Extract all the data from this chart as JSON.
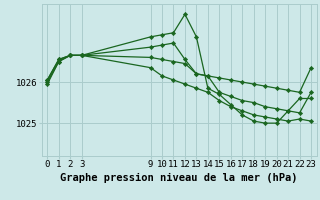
{
  "background_color": "#cde8e8",
  "grid_color": "#aacccc",
  "line_color": "#1a6620",
  "marker_color": "#1a6620",
  "xlabel": "Graphe pression niveau de la mer (hPa)",
  "xlim": [
    -0.5,
    23.5
  ],
  "ylim": [
    1024.2,
    1027.9
  ],
  "yticks": [
    1025,
    1026
  ],
  "xticks": [
    0,
    1,
    2,
    3,
    9,
    10,
    11,
    12,
    13,
    14,
    15,
    16,
    17,
    18,
    19,
    20,
    21,
    22,
    23
  ],
  "series": [
    {
      "x": [
        0,
        1,
        2,
        3,
        9,
        10,
        11,
        12,
        13,
        14,
        15,
        16,
        17,
        18,
        19,
        20,
        21,
        22,
        23
      ],
      "y": [
        1026.05,
        1026.55,
        1026.65,
        1026.65,
        1026.85,
        1026.9,
        1026.95,
        1026.55,
        1026.2,
        1026.15,
        1025.75,
        1025.65,
        1025.55,
        1025.5,
        1025.4,
        1025.35,
        1025.3,
        1025.25,
        1025.75
      ]
    },
    {
      "x": [
        0,
        1,
        2,
        3,
        9,
        10,
        11,
        12,
        13,
        14,
        15,
        16,
        17,
        18,
        19,
        20,
        21,
        22,
        23
      ],
      "y": [
        1026.05,
        1026.55,
        1026.65,
        1026.65,
        1027.1,
        1027.15,
        1027.2,
        1027.65,
        1027.1,
        1025.85,
        1025.7,
        1025.45,
        1025.2,
        1025.05,
        1025.0,
        1025.0,
        1025.3,
        1025.6,
        1025.6
      ]
    },
    {
      "x": [
        0,
        1,
        2,
        3,
        9,
        10,
        11,
        12,
        13,
        14,
        15,
        16,
        17,
        18,
        19,
        20,
        21,
        22,
        23
      ],
      "y": [
        1025.95,
        1026.5,
        1026.65,
        1026.65,
        1026.35,
        1026.15,
        1026.05,
        1025.95,
        1025.85,
        1025.75,
        1025.55,
        1025.4,
        1025.3,
        1025.2,
        1025.15,
        1025.1,
        1025.05,
        1025.1,
        1025.05
      ]
    },
    {
      "x": [
        0,
        1,
        2,
        3,
        9,
        10,
        11,
        12,
        13,
        14,
        15,
        16,
        17,
        18,
        19,
        20,
        21,
        22,
        23
      ],
      "y": [
        1026.0,
        1026.5,
        1026.65,
        1026.65,
        1026.6,
        1026.55,
        1026.5,
        1026.45,
        1026.2,
        1026.15,
        1026.1,
        1026.05,
        1026.0,
        1025.95,
        1025.9,
        1025.85,
        1025.8,
        1025.75,
        1026.35
      ]
    }
  ],
  "tick_fontsize": 6.5,
  "xlabel_fontsize": 7.5
}
